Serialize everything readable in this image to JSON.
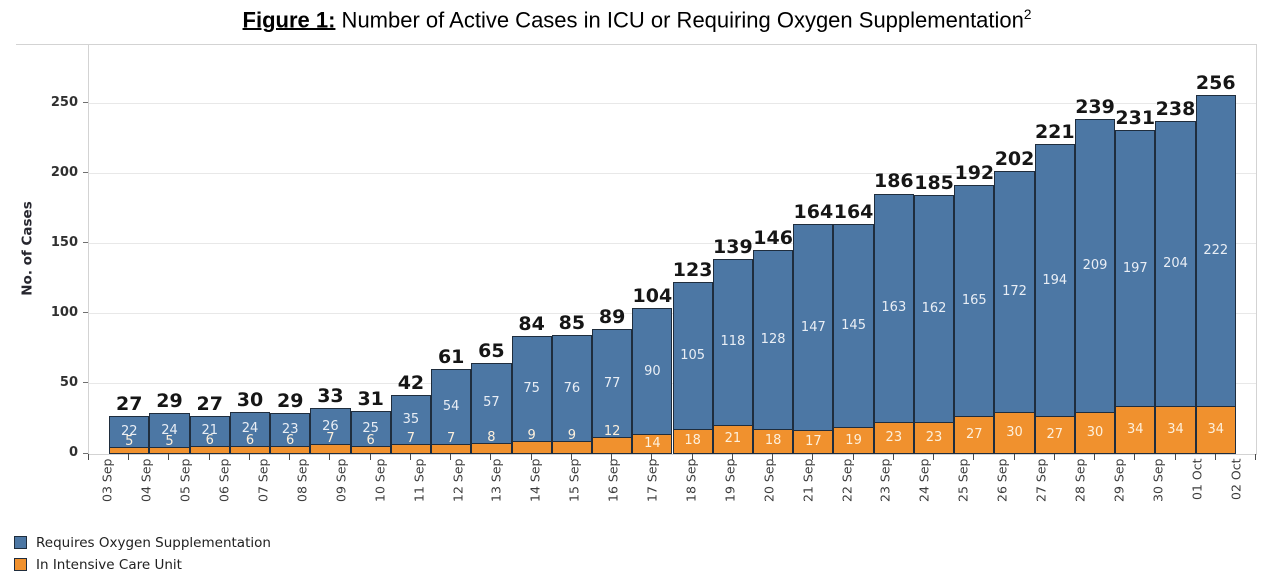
{
  "figure": {
    "title_prefix": "Figure 1:",
    "title_main": " Number of Active Cases in ICU or Requiring Oxygen Supplementation",
    "title_superscript": "2"
  },
  "y_axis": {
    "label": "No. of Cases",
    "tick_values": [
      0,
      50,
      100,
      150,
      200,
      250
    ],
    "max_value": 292
  },
  "x_axis": {
    "tick_labels": [
      "03 Sep",
      "04 Sep",
      "05 Sep",
      "06 Sep",
      "07 Sep",
      "08 Sep",
      "09 Sep",
      "10 Sep",
      "11 Sep",
      "12 Sep",
      "13 Sep",
      "14 Sep",
      "15 Sep",
      "16 Sep",
      "17 Sep",
      "18 Sep",
      "19 Sep",
      "20 Sep",
      "21 Sep",
      "22 Sep",
      "23 Sep",
      "24 Sep",
      "25 Sep",
      "26 Sep",
      "27 Sep",
      "28 Sep",
      "29 Sep",
      "30 Sep",
      "01 Oct",
      "02 Oct"
    ]
  },
  "legend": {
    "items": [
      {
        "label": "Requires Oxygen Supplementation",
        "color": "#4c77a4"
      },
      {
        "label": "In Intensive Care Unit",
        "color": "#f0912e"
      }
    ]
  },
  "colors": {
    "oxygen_bar": "#4c77a4",
    "icu_bar": "#f0912e",
    "bar_border": "#1f2d3d",
    "gridline": "#e8e8e8",
    "plot_border": "#d3d3d3",
    "total_label": "#161616",
    "oxygen_value_label": "#e9eef5",
    "icu_value_label": "#fdf0dc"
  },
  "chart_data": {
    "type": "bar",
    "stacked": true,
    "title": "Figure 1: Number of Active Cases in ICU or Requiring Oxygen Supplementation",
    "xlabel": "",
    "ylabel": "No. of Cases",
    "ylim": [
      0,
      292
    ],
    "grid": true,
    "legend_position": "bottom-left",
    "axis_tick_labels": [
      "03 Sep",
      "04 Sep",
      "05 Sep",
      "06 Sep",
      "07 Sep",
      "08 Sep",
      "09 Sep",
      "10 Sep",
      "11 Sep",
      "12 Sep",
      "13 Sep",
      "14 Sep",
      "15 Sep",
      "16 Sep",
      "17 Sep",
      "18 Sep",
      "19 Sep",
      "20 Sep",
      "21 Sep",
      "22 Sep",
      "23 Sep",
      "24 Sep",
      "25 Sep",
      "26 Sep",
      "27 Sep",
      "28 Sep",
      "29 Sep",
      "30 Sep",
      "01 Oct",
      "02 Oct"
    ],
    "categories": [
      "04 Sep",
      "05 Sep",
      "06 Sep",
      "07 Sep",
      "08 Sep",
      "09 Sep",
      "10 Sep",
      "11 Sep",
      "12 Sep",
      "13 Sep",
      "14 Sep",
      "15 Sep",
      "16 Sep",
      "17 Sep",
      "18 Sep",
      "19 Sep",
      "20 Sep",
      "21 Sep",
      "22 Sep",
      "23 Sep",
      "24 Sep",
      "25 Sep",
      "26 Sep",
      "27 Sep",
      "28 Sep",
      "29 Sep",
      "30 Sep",
      "01 Oct"
    ],
    "series": [
      {
        "name": "Requires Oxygen Supplementation",
        "color": "#4c77a4",
        "values": [
          22,
          24,
          21,
          24,
          23,
          26,
          25,
          35,
          54,
          57,
          75,
          76,
          77,
          90,
          105,
          118,
          128,
          147,
          145,
          163,
          162,
          165,
          172,
          194,
          209,
          197,
          204,
          222
        ]
      },
      {
        "name": "In Intensive Care Unit",
        "color": "#f0912e",
        "values": [
          5,
          5,
          6,
          6,
          6,
          7,
          6,
          7,
          7,
          8,
          9,
          9,
          12,
          14,
          18,
          21,
          18,
          17,
          19,
          23,
          23,
          27,
          30,
          27,
          30,
          34,
          34,
          34
        ]
      }
    ],
    "totals": [
      27,
      29,
      27,
      30,
      29,
      33,
      31,
      42,
      61,
      65,
      84,
      85,
      89,
      104,
      123,
      139,
      146,
      164,
      164,
      186,
      185,
      192,
      202,
      221,
      239,
      231,
      238,
      256
    ]
  }
}
